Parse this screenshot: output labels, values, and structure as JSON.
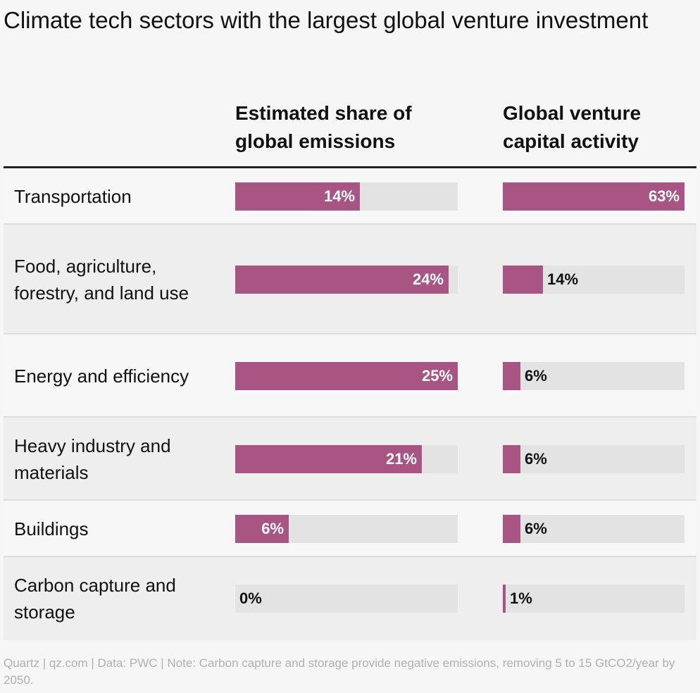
{
  "title": "Climate tech sectors with the largest global venture investment",
  "column_headers": {
    "emissions": "Estimated share of global emissions",
    "vc": "Global venture capital activity"
  },
  "footer": "Quartz | qz.com | Data: PWC | Note: Carbon capture and storage provide negative emissions, removing 5 to 15 GtCO2/year by 2050.",
  "colors": {
    "bar": "#a95584",
    "track": "#e3e3e3"
  },
  "chart_data": {
    "type": "bar",
    "title": "Climate tech sectors with the largest global venture investment",
    "categories": [
      "Transportation",
      "Food, agriculture, forestry, and land use",
      "Energy and efficiency",
      "Heavy industry and materials",
      "Buildings",
      "Carbon capture and storage"
    ],
    "series": [
      {
        "name": "Estimated share of global emissions",
        "values": [
          14,
          24,
          25,
          21,
          6,
          0
        ],
        "labels": [
          "14%",
          "24%",
          "25%",
          "21%",
          "6%",
          "0%"
        ],
        "max": 25
      },
      {
        "name": "Global venture capital activity",
        "values": [
          63,
          14,
          6,
          6,
          6,
          1
        ],
        "labels": [
          "63%",
          "14%",
          "6%",
          "6%",
          "6%",
          "1%"
        ],
        "max": 63
      }
    ]
  }
}
